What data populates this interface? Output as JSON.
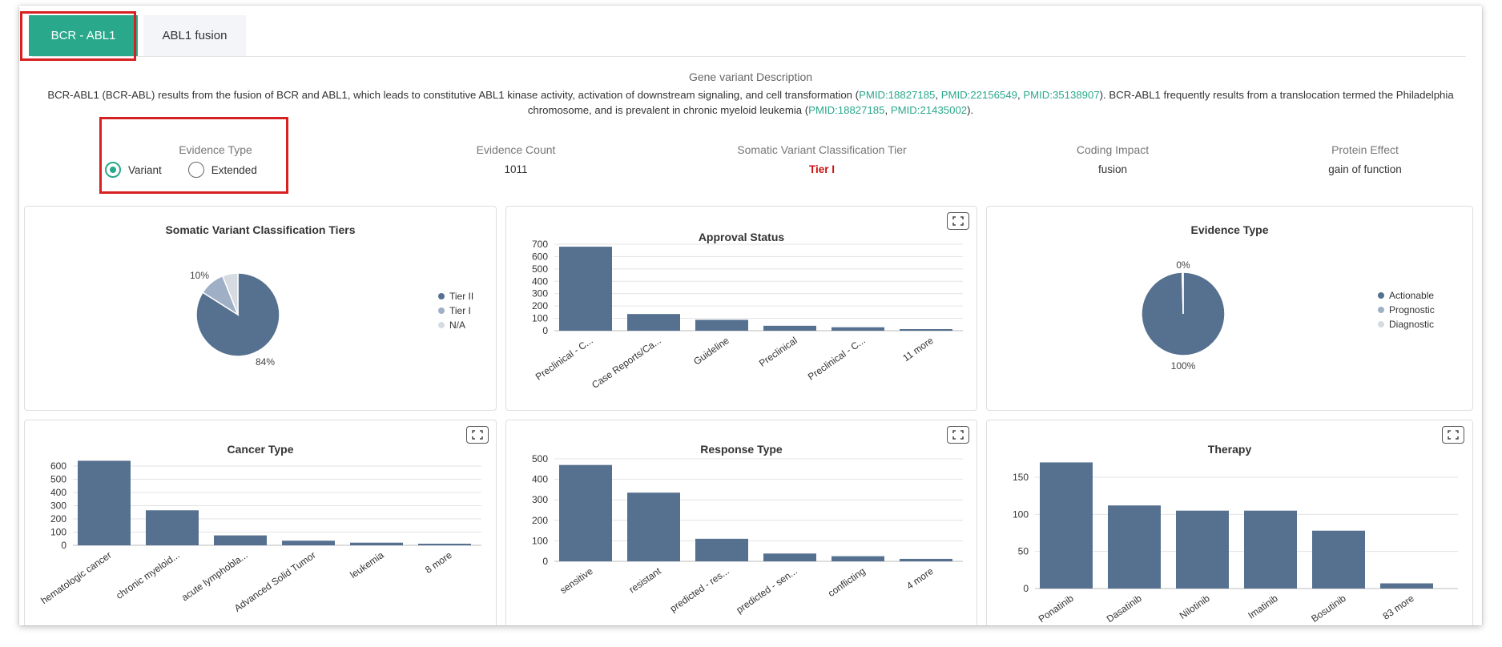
{
  "colors": {
    "accent": "#2aa88b",
    "bar": "#56708f",
    "tier_ii": "#56708f",
    "tier_i": "#9fb0c6",
    "na": "#d6dbe2",
    "highlight": "#d72020",
    "tier_text": "#cc1111"
  },
  "tabs": [
    {
      "label": "BCR - ABL1",
      "active": true
    },
    {
      "label": "ABL1 fusion",
      "active": false
    }
  ],
  "description": {
    "heading": "Gene variant Description",
    "part1": "BCR-ABL1 (BCR-ABL) results from the fusion of BCR and ABL1, which leads to constitutive ABL1 kinase activity, activation of downstream signaling, and cell transformation (",
    "pmid_a": "PMID:18827185",
    "pmid_b": "PMID:22156549",
    "pmid_c": "PMID:35138907",
    "part2": "). BCR-ABL1 frequently results from a translocation termed the Philadelphia chromosome, and is prevalent in chronic myeloid leukemia (",
    "pmid_d": "PMID:18827185",
    "pmid_e": "PMID:21435002",
    "part3": ").",
    "sep": ", "
  },
  "info": {
    "evidence_type": {
      "label": "Evidence Type",
      "options": [
        "Variant",
        "Extended"
      ],
      "selected": "Variant"
    },
    "evidence_count": {
      "label": "Evidence Count",
      "value": "1011"
    },
    "tier": {
      "label": "Somatic Variant Classification Tier",
      "value": "Tier I"
    },
    "coding_impact": {
      "label": "Coding Impact",
      "value": "fusion"
    },
    "protein_effect": {
      "label": "Protein Effect",
      "value": "gain of function"
    }
  },
  "panels": {
    "somatic_tiers": {
      "title": "Somatic Variant Classification Tiers"
    },
    "approval_status": {
      "title": "Approval Status"
    },
    "evidence_type": {
      "title": "Evidence Type"
    },
    "cancer_type": {
      "title": "Cancer Type"
    },
    "response_type": {
      "title": "Response Type"
    },
    "therapy": {
      "title": "Therapy"
    }
  },
  "chart_data": [
    {
      "id": "somatic_tiers",
      "type": "pie",
      "title": "Somatic Variant Classification Tiers",
      "legend": [
        "Tier II",
        "Tier I",
        "N/A"
      ],
      "legend_position": "right",
      "values": [
        84,
        10,
        6
      ],
      "printed_labels": [
        "84%",
        "10%",
        ""
      ]
    },
    {
      "id": "approval_status",
      "type": "bar",
      "title": "Approval Status",
      "categories": [
        "Preclinical - C...",
        "Case Reports/Ca...",
        "Guideline",
        "Preclinical",
        "Preclinical - C...",
        "11 more"
      ],
      "values": [
        680,
        135,
        88,
        40,
        28,
        10
      ],
      "yticks": [
        0,
        100,
        200,
        300,
        400,
        500,
        600,
        700
      ],
      "ylim": [
        0,
        700
      ],
      "grid": true
    },
    {
      "id": "evidence_type",
      "type": "pie",
      "title": "Evidence Type",
      "legend": [
        "Actionable",
        "Prognostic",
        "Diagnostic"
      ],
      "legend_position": "right",
      "values": [
        99.6,
        0.4,
        0
      ],
      "printed_labels": [
        "100%",
        "0%",
        ""
      ]
    },
    {
      "id": "cancer_type",
      "type": "bar",
      "title": "Cancer Type",
      "categories": [
        "hematologic cancer",
        "chronic myeloid...",
        "acute lymphobla...",
        "Advanced Solid Tumor",
        "leukemia",
        "8 more"
      ],
      "values": [
        640,
        265,
        75,
        35,
        20,
        8
      ],
      "yticks": [
        0,
        100,
        200,
        300,
        400,
        500,
        600
      ],
      "ylim": [
        0,
        600
      ],
      "grid": true
    },
    {
      "id": "response_type",
      "type": "bar",
      "title": "Response Type",
      "categories": [
        "sensitive",
        "resistant",
        "predicted - res...",
        "predicted - sen...",
        "conflicting",
        "4 more"
      ],
      "values": [
        470,
        335,
        110,
        38,
        25,
        12
      ],
      "yticks": [
        0,
        100,
        200,
        300,
        400,
        500
      ],
      "ylim": [
        0,
        500
      ],
      "grid": true
    },
    {
      "id": "therapy",
      "type": "bar",
      "title": "Therapy",
      "categories": [
        "Ponatinib",
        "Dasatinib",
        "Nilotinib",
        "Imatinib",
        "Bosutinib",
        "83 more"
      ],
      "values": [
        170,
        112,
        105,
        105,
        78,
        7
      ],
      "yticks": [
        0,
        50,
        100,
        150
      ],
      "ylim": [
        0,
        150
      ],
      "grid": true
    }
  ]
}
